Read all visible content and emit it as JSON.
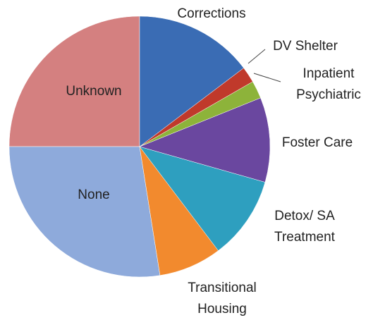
{
  "chart_data": {
    "type": "pie",
    "categories": [
      "Corrections",
      "DV Shelter",
      "Inpatient Psychiatric",
      "Foster Care",
      "Detox/ SA Treatment",
      "Transitional Housing",
      "None",
      "Unknown"
    ],
    "values": [
      14.7,
      2,
      2.2,
      10.5,
      10.3,
      7.8,
      27.5,
      25
    ],
    "colors": [
      "#3a6cb4",
      "#c0392b",
      "#8db33a",
      "#6a479f",
      "#2e9fbf",
      "#f28a2e",
      "#8eaadb",
      "#d48080"
    ]
  }
}
